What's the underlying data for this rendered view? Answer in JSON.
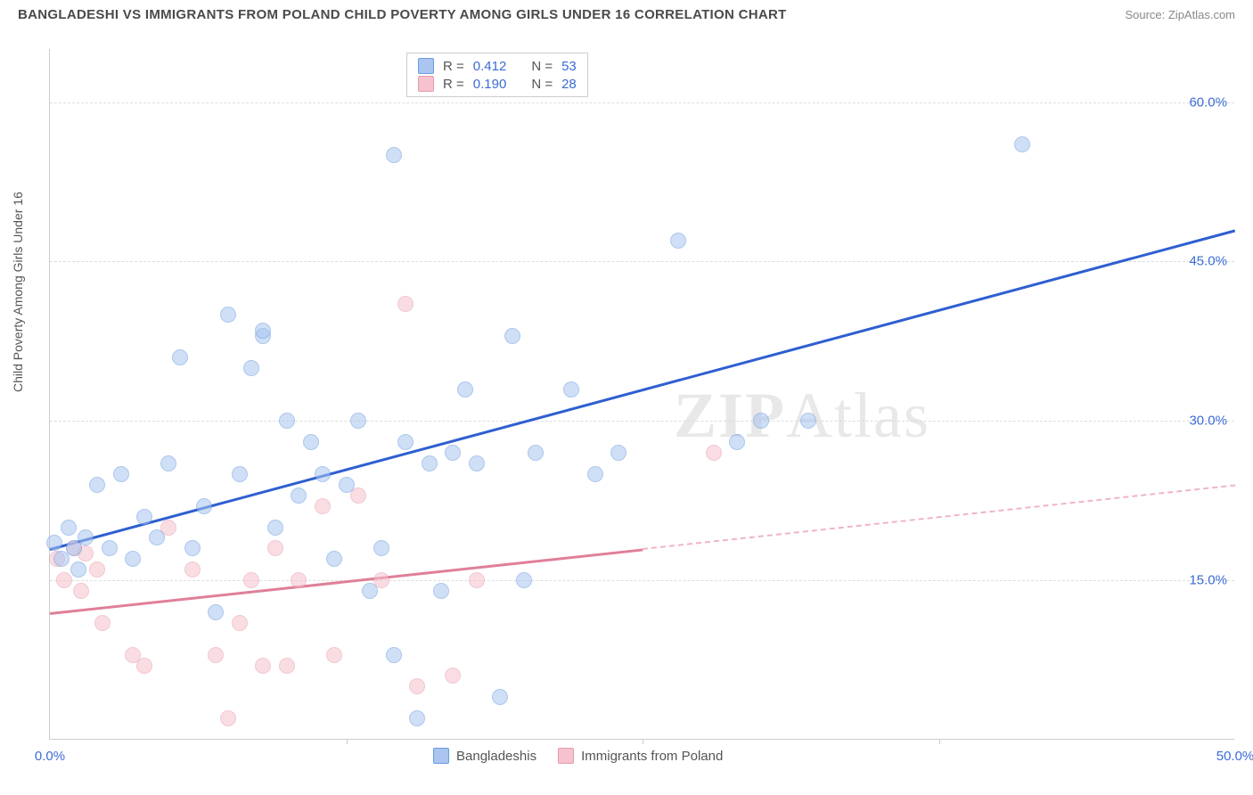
{
  "header": {
    "title": "BANGLADESHI VS IMMIGRANTS FROM POLAND CHILD POVERTY AMONG GIRLS UNDER 16 CORRELATION CHART",
    "source": "Source: ZipAtlas.com"
  },
  "chart": {
    "type": "scatter",
    "ylabel": "Child Poverty Among Girls Under 16",
    "xlim": [
      0,
      50
    ],
    "ylim": [
      0,
      65
    ],
    "yticks": [
      {
        "v": 15,
        "label": "15.0%"
      },
      {
        "v": 30,
        "label": "30.0%"
      },
      {
        "v": 45,
        "label": "45.0%"
      },
      {
        "v": 60,
        "label": "60.0%"
      }
    ],
    "xticks": [
      {
        "v": 0,
        "label": "0.0%"
      },
      {
        "v": 50,
        "label": "50.0%"
      }
    ],
    "xtick_marks": [
      12.5,
      25,
      37.5
    ],
    "grid_color": "#dddddd",
    "background_color": "#ffffff",
    "series": [
      {
        "name": "Bangladeshis",
        "color_fill": "#a9c5f0",
        "color_stroke": "#6a9be0",
        "R": "0.412",
        "N": "53",
        "trend": {
          "x1": 0,
          "y1": 18,
          "x2": 50,
          "y2": 48,
          "color": "#2e5fd0",
          "width": 3
        },
        "points": [
          {
            "x": 0.2,
            "y": 18.5
          },
          {
            "x": 0.5,
            "y": 17
          },
          {
            "x": 0.8,
            "y": 20
          },
          {
            "x": 1.0,
            "y": 18
          },
          {
            "x": 1.2,
            "y": 16
          },
          {
            "x": 1.5,
            "y": 19
          },
          {
            "x": 2.0,
            "y": 24
          },
          {
            "x": 2.5,
            "y": 18
          },
          {
            "x": 3.0,
            "y": 25
          },
          {
            "x": 3.5,
            "y": 17
          },
          {
            "x": 4.0,
            "y": 21
          },
          {
            "x": 4.5,
            "y": 19
          },
          {
            "x": 5.0,
            "y": 26
          },
          {
            "x": 5.5,
            "y": 36
          },
          {
            "x": 6.0,
            "y": 18
          },
          {
            "x": 6.5,
            "y": 22
          },
          {
            "x": 7.0,
            "y": 12
          },
          {
            "x": 7.5,
            "y": 40
          },
          {
            "x": 8.0,
            "y": 25
          },
          {
            "x": 8.5,
            "y": 35
          },
          {
            "x": 9.0,
            "y": 38
          },
          {
            "x": 9.0,
            "y": 38.5
          },
          {
            "x": 9.5,
            "y": 20
          },
          {
            "x": 10.0,
            "y": 30
          },
          {
            "x": 10.5,
            "y": 23
          },
          {
            "x": 11.0,
            "y": 28
          },
          {
            "x": 11.5,
            "y": 25
          },
          {
            "x": 12.0,
            "y": 17
          },
          {
            "x": 12.5,
            "y": 24
          },
          {
            "x": 13.0,
            "y": 30
          },
          {
            "x": 13.5,
            "y": 14
          },
          {
            "x": 14.0,
            "y": 18
          },
          {
            "x": 14.5,
            "y": 55
          },
          {
            "x": 14.5,
            "y": 8
          },
          {
            "x": 15.0,
            "y": 28
          },
          {
            "x": 15.5,
            "y": 2
          },
          {
            "x": 16.0,
            "y": 26
          },
          {
            "x": 16.5,
            "y": 14
          },
          {
            "x": 17.0,
            "y": 27
          },
          {
            "x": 17.5,
            "y": 33
          },
          {
            "x": 18.0,
            "y": 26
          },
          {
            "x": 19.0,
            "y": 4
          },
          {
            "x": 19.5,
            "y": 38
          },
          {
            "x": 20.0,
            "y": 15
          },
          {
            "x": 20.5,
            "y": 27
          },
          {
            "x": 22.0,
            "y": 33
          },
          {
            "x": 23.0,
            "y": 25
          },
          {
            "x": 24.0,
            "y": 27
          },
          {
            "x": 26.5,
            "y": 47
          },
          {
            "x": 29.0,
            "y": 28
          },
          {
            "x": 30.0,
            "y": 30
          },
          {
            "x": 32.0,
            "y": 30
          },
          {
            "x": 41.0,
            "y": 56
          }
        ]
      },
      {
        "name": "Immigrants from Poland",
        "color_fill": "#f5c2cd",
        "color_stroke": "#e89bab",
        "R": "0.190",
        "N": "28",
        "trend_solid": {
          "x1": 0,
          "y1": 12,
          "x2": 25,
          "y2": 18,
          "color": "#e07f98",
          "width": 2.5
        },
        "trend_dashed": {
          "x1": 25,
          "y1": 18,
          "x2": 50,
          "y2": 24,
          "color": "#f0b5c2",
          "width": 2
        },
        "points": [
          {
            "x": 0.3,
            "y": 17
          },
          {
            "x": 0.6,
            "y": 15
          },
          {
            "x": 1.0,
            "y": 18
          },
          {
            "x": 1.3,
            "y": 14
          },
          {
            "x": 1.5,
            "y": 17.5
          },
          {
            "x": 2.0,
            "y": 16
          },
          {
            "x": 2.2,
            "y": 11
          },
          {
            "x": 3.5,
            "y": 8
          },
          {
            "x": 4.0,
            "y": 7
          },
          {
            "x": 5.0,
            "y": 20
          },
          {
            "x": 6.0,
            "y": 16
          },
          {
            "x": 7.0,
            "y": 8
          },
          {
            "x": 7.5,
            "y": 2
          },
          {
            "x": 8.0,
            "y": 11
          },
          {
            "x": 8.5,
            "y": 15
          },
          {
            "x": 9.0,
            "y": 7
          },
          {
            "x": 9.5,
            "y": 18
          },
          {
            "x": 10.0,
            "y": 7
          },
          {
            "x": 10.5,
            "y": 15
          },
          {
            "x": 11.5,
            "y": 22
          },
          {
            "x": 12.0,
            "y": 8
          },
          {
            "x": 13.0,
            "y": 23
          },
          {
            "x": 14.0,
            "y": 15
          },
          {
            "x": 15.0,
            "y": 41
          },
          {
            "x": 15.5,
            "y": 5
          },
          {
            "x": 17.0,
            "y": 6
          },
          {
            "x": 18.0,
            "y": 15
          },
          {
            "x": 28.0,
            "y": 27
          }
        ]
      }
    ],
    "legend": {
      "r_label": "R =",
      "n_label": "N ="
    },
    "watermark": {
      "zip": "ZIP",
      "atlas": "Atlas"
    }
  }
}
